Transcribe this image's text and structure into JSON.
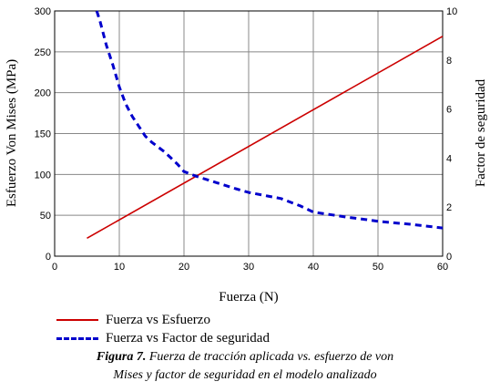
{
  "chart_data": {
    "type": "line",
    "xlabel": "Fuerza (N)",
    "ylabel_left": "Esfuerzo Von Mises (MPa)",
    "ylabel_right": "Factor de seguridad",
    "xlim": [
      0,
      60
    ],
    "ylim_left": [
      0,
      300
    ],
    "ylim_right": [
      0,
      10
    ],
    "x_ticks": [
      0,
      10,
      20,
      30,
      40,
      50,
      60
    ],
    "y_left_ticks": [
      0,
      50,
      100,
      150,
      200,
      250,
      300
    ],
    "y_right_ticks": [
      0,
      2,
      4,
      6,
      8,
      10
    ],
    "grid": true,
    "series": [
      {
        "name": "Fuerza vs Esfuerzo",
        "axis": "left",
        "color": "#cc0000",
        "style": "solid",
        "x": [
          5,
          60
        ],
        "y": [
          22,
          269
        ]
      },
      {
        "name": "Fuerza vs Factor de seguridad",
        "axis": "right",
        "color": "#0000cc",
        "style": "dashed",
        "x": [
          6.5,
          7,
          8,
          9,
          10,
          11,
          12,
          13,
          14,
          15,
          16,
          17,
          18,
          19,
          20,
          22,
          25,
          28,
          30,
          33,
          35,
          38,
          40,
          43,
          45,
          48,
          50,
          55,
          60
        ],
        "y": [
          10.0,
          9.6,
          8.6,
          7.8,
          6.9,
          6.2,
          5.7,
          5.3,
          4.9,
          4.65,
          4.45,
          4.25,
          4.0,
          3.75,
          3.45,
          3.25,
          3.0,
          2.75,
          2.6,
          2.45,
          2.35,
          2.05,
          1.8,
          1.68,
          1.6,
          1.5,
          1.42,
          1.3,
          1.15
        ]
      }
    ]
  },
  "caption": {
    "figure_label": "Figura 7.",
    "text_line1": " Fuerza de tracción aplicada vs. esfuerzo de von",
    "text_line2": "Mises y factor de seguridad en el modelo analizado"
  }
}
